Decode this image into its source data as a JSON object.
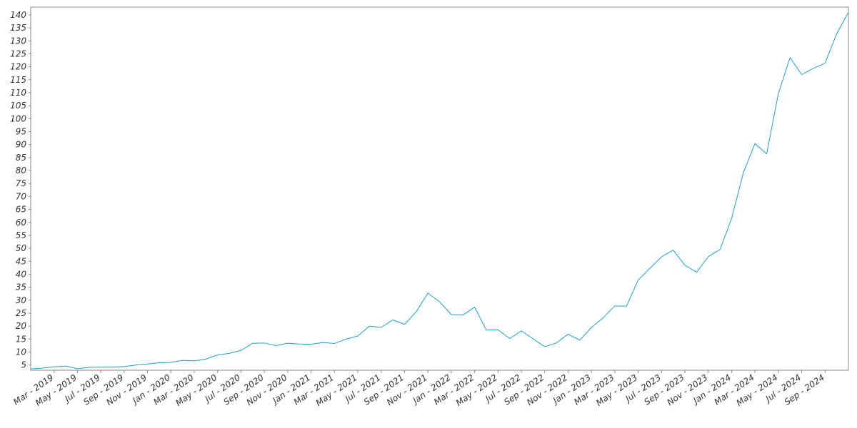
{
  "chart_data": {
    "type": "line",
    "x": [
      "2019-01",
      "2019-02",
      "2019-03",
      "2019-04",
      "2019-05",
      "2019-06",
      "2019-07",
      "2019-08",
      "2019-09",
      "2019-10",
      "2019-11",
      "2019-12",
      "2020-01",
      "2020-02",
      "2020-03",
      "2020-04",
      "2020-05",
      "2020-06",
      "2020-07",
      "2020-08",
      "2020-09",
      "2020-10",
      "2020-11",
      "2020-12",
      "2021-01",
      "2021-02",
      "2021-03",
      "2021-04",
      "2021-05",
      "2021-06",
      "2021-07",
      "2021-08",
      "2021-09",
      "2021-10",
      "2021-11",
      "2021-12",
      "2022-01",
      "2022-02",
      "2022-03",
      "2022-04",
      "2022-05",
      "2022-06",
      "2022-07",
      "2022-08",
      "2022-09",
      "2022-10",
      "2022-11",
      "2022-12",
      "2023-01",
      "2023-02",
      "2023-03",
      "2023-04",
      "2023-05",
      "2023-06",
      "2023-07",
      "2023-08",
      "2023-09",
      "2023-10",
      "2023-11",
      "2023-12",
      "2024-01",
      "2024-02",
      "2024-03",
      "2024-04",
      "2024-05",
      "2024-06",
      "2024-07",
      "2024-08",
      "2024-09",
      "2024-10",
      "2024-11"
    ],
    "series": [
      {
        "color": "#1e9fd6",
        "values": [
          3.5,
          3.8,
          4.3,
          4.6,
          3.6,
          4.1,
          4.2,
          4.2,
          4.4,
          5.0,
          5.4,
          5.9,
          6.0,
          6.8,
          6.6,
          7.3,
          8.9,
          9.5,
          10.6,
          13.4,
          13.5,
          12.5,
          13.4,
          13.1,
          13.0,
          13.7,
          13.3,
          15.0,
          16.2,
          20.0,
          19.5,
          22.4,
          20.7,
          25.5,
          32.7,
          29.4,
          24.5,
          24.3,
          27.3,
          18.5,
          18.6,
          15.2,
          18.2,
          15.1,
          12.1,
          13.5,
          16.9,
          14.6,
          19.5,
          23.2,
          27.8,
          27.7,
          37.8,
          42.3,
          46.7,
          49.3,
          43.5,
          40.8,
          46.8,
          49.5,
          61.5,
          79.1,
          90.4,
          86.4,
          109.6,
          123.5,
          117,
          119.4,
          121.4,
          132.8,
          141
        ]
      }
    ],
    "xlim": [
      "2019-01",
      "2024-11"
    ],
    "xticks": [
      {
        "value": "2019-03",
        "label": "Mar - 2019"
      },
      {
        "value": "2019-05",
        "label": "May - 2019"
      },
      {
        "value": "2019-07",
        "label": "Jul - 2019"
      },
      {
        "value": "2019-09",
        "label": "Sep - 2019"
      },
      {
        "value": "2019-11",
        "label": "Nov - 2019"
      },
      {
        "value": "2020-01",
        "label": "Jan - 2020"
      },
      {
        "value": "2020-03",
        "label": "Mar - 2020"
      },
      {
        "value": "2020-05",
        "label": "May - 2020"
      },
      {
        "value": "2020-07",
        "label": "Jul - 2020"
      },
      {
        "value": "2020-09",
        "label": "Sep - 2020"
      },
      {
        "value": "2020-11",
        "label": "Nov - 2020"
      },
      {
        "value": "2021-01",
        "label": "Jan - 2021"
      },
      {
        "value": "2021-03",
        "label": "Mar - 2021"
      },
      {
        "value": "2021-05",
        "label": "May - 2021"
      },
      {
        "value": "2021-07",
        "label": "Jul - 2021"
      },
      {
        "value": "2021-09",
        "label": "Sep - 2021"
      },
      {
        "value": "2021-11",
        "label": "Nov - 2021"
      },
      {
        "value": "2022-01",
        "label": "Jan - 2022"
      },
      {
        "value": "2022-03",
        "label": "Mar - 2022"
      },
      {
        "value": "2022-05",
        "label": "May - 2022"
      },
      {
        "value": "2022-07",
        "label": "Jul - 2022"
      },
      {
        "value": "2022-09",
        "label": "Sep - 2022"
      },
      {
        "value": "2022-11",
        "label": "Nov - 2022"
      },
      {
        "value": "2023-01",
        "label": "Jan - 2023"
      },
      {
        "value": "2023-03",
        "label": "Mar - 2023"
      },
      {
        "value": "2023-05",
        "label": "May - 2023"
      },
      {
        "value": "2023-07",
        "label": "Jul - 2023"
      },
      {
        "value": "2023-09",
        "label": "Sep - 2023"
      },
      {
        "value": "2023-11",
        "label": "Nov - 2023"
      },
      {
        "value": "2024-01",
        "label": "Jan - 2024"
      },
      {
        "value": "2024-03",
        "label": "Mar - 2024"
      },
      {
        "value": "2024-05",
        "label": "May - 2024"
      },
      {
        "value": "2024-07",
        "label": "Jul - 2024"
      },
      {
        "value": "2024-09",
        "label": "Sep - 2024"
      }
    ],
    "ylim": [
      3,
      143
    ],
    "yticks": [
      5,
      10,
      15,
      20,
      25,
      30,
      35,
      40,
      45,
      50,
      55,
      60,
      65,
      70,
      75,
      80,
      85,
      90,
      95,
      100,
      105,
      110,
      115,
      120,
      125,
      130,
      135,
      140
    ],
    "grid": false
  }
}
